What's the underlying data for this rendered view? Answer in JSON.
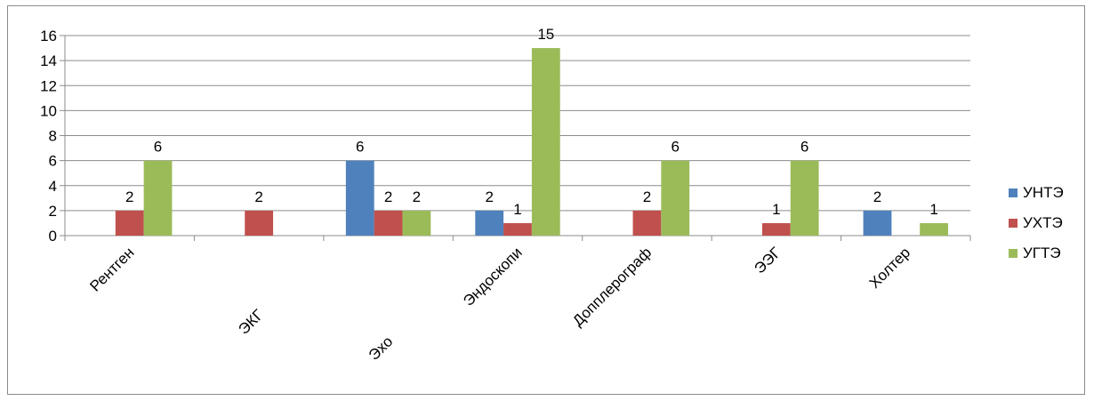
{
  "chart_data": {
    "type": "bar",
    "title": "",
    "xlabel": "",
    "ylabel": "",
    "ylim": [
      0,
      16
    ],
    "yticks": [
      0,
      2,
      4,
      6,
      8,
      10,
      12,
      14,
      16
    ],
    "grid": true,
    "legend_position": "right",
    "categories": [
      "Рентген",
      "ЭКГ",
      "Эхо",
      "Эндоскопи",
      "Допплерограф",
      "ЭЭГ",
      "Холтер"
    ],
    "series": [
      {
        "name": "УНТЭ",
        "color": "#4f81bd",
        "values": [
          null,
          null,
          6,
          2,
          null,
          null,
          2
        ]
      },
      {
        "name": "УХТЭ",
        "color": "#c0504d",
        "values": [
          2,
          2,
          2,
          1,
          2,
          1,
          null
        ]
      },
      {
        "name": "УГТЭ",
        "color": "#9bbb59",
        "values": [
          6,
          null,
          2,
          15,
          6,
          6,
          1
        ]
      }
    ]
  }
}
